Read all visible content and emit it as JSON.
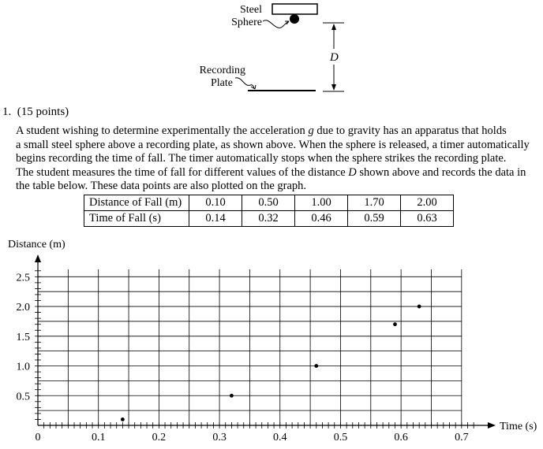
{
  "figure": {
    "steel_label": [
      "Steel",
      "Sphere"
    ],
    "recording_label": [
      "Recording",
      "Plate"
    ],
    "distance_symbol": "D"
  },
  "question": {
    "number": "1.",
    "points": "(15 points)",
    "lines": [
      [
        "A student wishing to determine experimentally the acceleration ",
        {
          "var": "g"
        },
        " due to gravity has an apparatus that holds"
      ],
      [
        "a small steel sphere above a recording plate, as shown above. When the sphere is released, a timer automatically"
      ],
      [
        "begins recording the time of fall. The timer automatically stops when the sphere strikes the recording plate."
      ],
      [
        "The student measures the time of fall for different values of the distance ",
        {
          "var": "D"
        },
        " shown above and records the data in"
      ],
      [
        "the table below.  These data points are also plotted on the graph."
      ]
    ]
  },
  "table": {
    "rows": [
      {
        "header": "Distance of Fall (m)",
        "values": [
          "0.10",
          "0.50",
          "1.00",
          "1.70",
          "2.00"
        ]
      },
      {
        "header": "Time of Fall (s)",
        "values": [
          "0.14",
          "0.32",
          "0.46",
          "0.59",
          "0.63"
        ]
      }
    ]
  },
  "chart_data": {
    "type": "scatter",
    "xlabel": "Time (s)",
    "ylabel": "Distance (m)",
    "xlim": [
      0,
      0.725
    ],
    "ylim": [
      0,
      2.65
    ],
    "x_ticks": [
      "0",
      "0.1",
      "0.2",
      "0.3",
      "0.4",
      "0.5",
      "0.6",
      "0.7"
    ],
    "y_ticks": [
      "0.5",
      "1.0",
      "1.5",
      "2.0",
      "2.5"
    ],
    "x_grid_step": 0.05,
    "y_grid_step": 0.25,
    "grid": true,
    "points": [
      {
        "x": 0.14,
        "y": 0.1
      },
      {
        "x": 0.32,
        "y": 0.5
      },
      {
        "x": 0.46,
        "y": 1.0
      },
      {
        "x": 0.59,
        "y": 1.7
      },
      {
        "x": 0.63,
        "y": 2.0
      }
    ]
  }
}
